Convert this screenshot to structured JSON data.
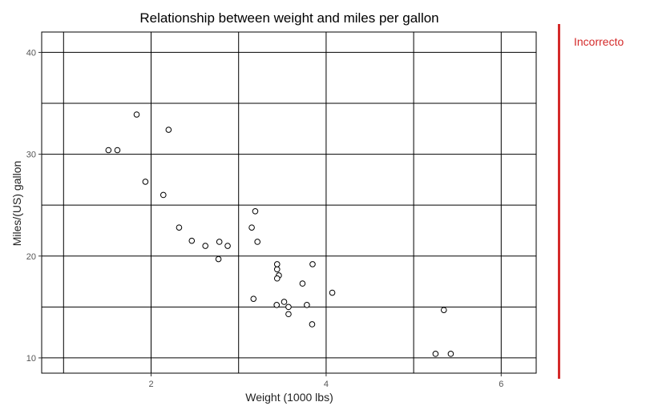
{
  "chart_data": {
    "type": "scatter",
    "title": "Relationship between weight and miles per gallon",
    "xlabel": "Weight (1000 lbs)",
    "ylabel": "Miles/(US) gallon",
    "xlim": [
      0.75,
      6.4
    ],
    "ylim": [
      8.5,
      42
    ],
    "xticks": [
      2,
      4,
      6
    ],
    "yticks": [
      10,
      20,
      30,
      40
    ],
    "grid": true,
    "x": [
      2.62,
      2.875,
      2.32,
      3.215,
      3.44,
      3.46,
      3.57,
      3.19,
      3.15,
      3.44,
      3.44,
      4.07,
      3.73,
      3.78,
      5.25,
      5.424,
      5.345,
      2.2,
      1.615,
      1.835,
      2.465,
      3.52,
      3.435,
      3.84,
      3.845,
      1.935,
      2.14,
      1.513,
      3.17,
      2.77,
      3.57,
      2.78
    ],
    "y": [
      21.0,
      21.0,
      22.8,
      21.4,
      18.7,
      18.1,
      14.3,
      24.4,
      22.8,
      19.2,
      17.8,
      16.4,
      17.3,
      15.2,
      10.4,
      10.4,
      14.7,
      32.4,
      30.4,
      33.9,
      21.5,
      15.5,
      15.2,
      13.3,
      19.2,
      27.3,
      26.0,
      30.4,
      15.8,
      19.7,
      15.0,
      21.4
    ]
  },
  "annotation": {
    "label": "Incorrecto",
    "color": "#d42a2a"
  }
}
